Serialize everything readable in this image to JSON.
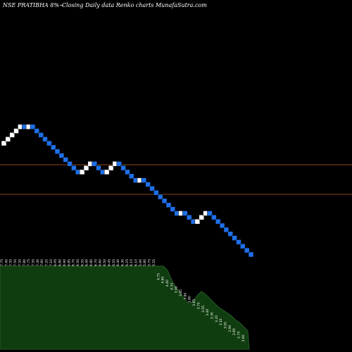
{
  "header": {
    "symbol": "NSE PRATIBHA 8%~",
    "subtitle": "Closing Daily data  Renko  charts MunafaSutra.com"
  },
  "colors": {
    "background": "#000000",
    "up_brick": "#ffffff",
    "down_brick": "#1e6fe8",
    "ref_line": "#8b4513",
    "volume_fill": "#0f3d0f",
    "label_text": "#ffffff"
  },
  "chart_data": {
    "type": "renko",
    "title": "",
    "xlabel": "",
    "ylabel": "",
    "grid": false,
    "brick_size_label": "8%",
    "directions": [
      "up",
      "up",
      "up",
      "up",
      "up",
      "down",
      "up",
      "down",
      "down",
      "down",
      "down",
      "down",
      "down",
      "down",
      "down",
      "down",
      "down",
      "down",
      "down",
      "up",
      "up",
      "up",
      "down",
      "down",
      "down",
      "up",
      "up",
      "up",
      "down",
      "down",
      "down",
      "down",
      "down",
      "up",
      "down",
      "down",
      "down",
      "down",
      "down",
      "down",
      "down",
      "down",
      "down",
      "up",
      "down",
      "down",
      "down",
      "up",
      "up",
      "up",
      "down",
      "down",
      "down",
      "down",
      "down",
      "down",
      "down",
      "down",
      "down",
      "down",
      "down"
    ],
    "bottom_labels": [
      "7.75",
      "7.40",
      "7.55",
      "7.50",
      "7.55",
      "7.80",
      "7.75",
      "7.55",
      "7.40",
      "7.60",
      "7.20",
      "7.10",
      "6.95",
      "6.80",
      "6.90",
      "6.85",
      "6.70",
      "6.50",
      "6.55",
      "6.40",
      "6.80",
      "6.70",
      "6.60",
      "6.50",
      "6.45",
      "6.55",
      "6.40",
      "6.30",
      "6.25",
      "6.15",
      "6.10",
      "5.90",
      "5.80",
      "5.75",
      "5.55",
      "4.75",
      "4.60",
      "4.40",
      "4.10",
      "3.90",
      "3.85",
      "3.60",
      "3.80",
      "3.65",
      "3.70",
      "3.55",
      "3.40",
      "3.30",
      "3.20",
      "3.10",
      "3.00",
      "2.90",
      "2.85",
      "2.75",
      "2.60"
    ],
    "reference_lines": 2
  }
}
